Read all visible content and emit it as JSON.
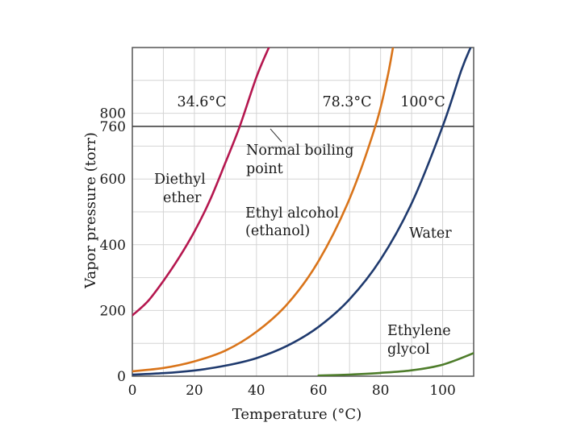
{
  "chart_data": {
    "type": "line",
    "title": "",
    "xlabel": "Temperature (°C)",
    "ylabel": "Vapor pressure (torr)",
    "xlim": [
      0,
      110
    ],
    "ylim": [
      0,
      1000
    ],
    "x_ticks": [
      "0",
      "20",
      "40",
      "60",
      "80",
      "100"
    ],
    "y_ticks": [
      {
        "value": 0,
        "label": "0"
      },
      {
        "value": 200,
        "label": "200"
      },
      {
        "value": 400,
        "label": "400"
      },
      {
        "value": 600,
        "label": "600"
      },
      {
        "value": 760,
        "label": "760"
      },
      {
        "value": 800,
        "label": "800"
      }
    ],
    "grid": true,
    "reference_line": {
      "y": 760,
      "label_line1": "Normal boiling",
      "label_line2": "point"
    },
    "series": [
      {
        "name": "Diethyl ether",
        "label_line1": "Diethyl",
        "label_line2": "ether",
        "color": "#b5174f",
        "x": [
          0,
          5,
          10,
          15,
          20,
          25,
          30,
          34.6,
          40,
          44
        ],
        "y": [
          185,
          228,
          290,
          360,
          440,
          535,
          650,
          760,
          910,
          1000
        ]
      },
      {
        "name": "Ethyl alcohol (ethanol)",
        "label_line1": "Ethyl alcohol",
        "label_line2": "(ethanol)",
        "color": "#d9741a",
        "x": [
          0,
          10,
          20,
          30,
          40,
          50,
          60,
          70,
          78.3,
          82,
          84
        ],
        "y": [
          15,
          25,
          45,
          78,
          135,
          220,
          350,
          540,
          760,
          900,
          1000
        ]
      },
      {
        "name": "Water",
        "label_line1": "Water",
        "color": "#1f3a6e",
        "x": [
          0,
          10,
          20,
          30,
          40,
          50,
          60,
          70,
          80,
          90,
          100,
          106,
          109
        ],
        "y": [
          4.6,
          9.2,
          17.5,
          32,
          55,
          93,
          150,
          234,
          355,
          526,
          760,
          930,
          1000
        ]
      },
      {
        "name": "Ethylene glycol",
        "label_line1": "Ethylene",
        "label_line2": "glycol",
        "color": "#4e7d2b",
        "x": [
          60,
          70,
          80,
          90,
          100,
          110
        ],
        "y": [
          2,
          5,
          10,
          18,
          35,
          70
        ]
      }
    ],
    "annotations": [
      {
        "text": "34.6°C",
        "x": 34.6,
        "y": 760
      },
      {
        "text": "78.3°C",
        "x": 78.3,
        "y": 760
      },
      {
        "text": "100°C",
        "x": 100,
        "y": 760
      }
    ]
  }
}
